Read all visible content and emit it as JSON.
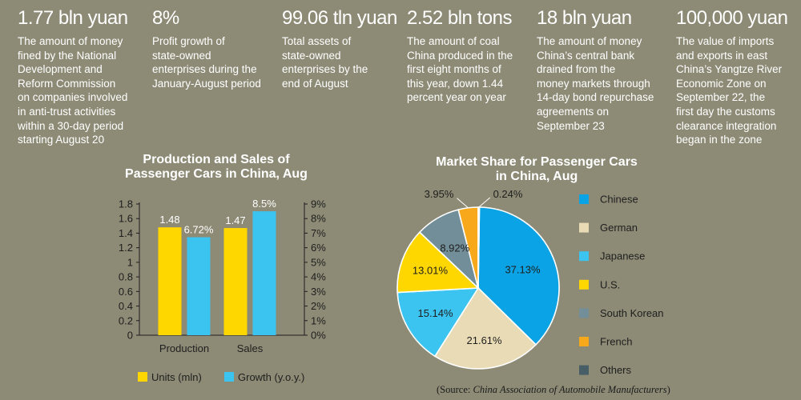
{
  "stats": [
    {
      "value": "1.77 bln yuan",
      "desc": [
        "The amount of money",
        "fined by the National",
        "Development and",
        "Reform Commission",
        "on companies involved",
        "in anti-trust activities",
        "within a 30-day period",
        "starting August 20"
      ]
    },
    {
      "value": "8%",
      "desc": [
        "Profit growth of",
        "state-owned",
        "enterprises during the",
        "January-August period"
      ]
    },
    {
      "value": "99.06 tln yuan",
      "desc": [
        "Total assets of",
        "state-owned",
        "enterprises by the",
        "end of August"
      ]
    },
    {
      "value": "2.52 bln tons",
      "desc": [
        "The amount of coal",
        "China produced in the",
        "first eight months of",
        "this year, down 1.44",
        "percent year on year"
      ]
    },
    {
      "value": "18 bln yuan",
      "desc": [
        "The amount of money",
        "China’s central bank",
        "drained from the",
        "money markets through",
        "14-day bond repurchase",
        "agreements on",
        "September 23"
      ]
    },
    {
      "value": "100,000 yuan",
      "desc": [
        "The value of imports",
        "and exports in east",
        "China’s Yangtze River",
        "Economic Zone on",
        "September 22, the",
        "first day the customs",
        "clearance integration",
        "began in the zone"
      ]
    }
  ],
  "chart_data": [
    {
      "type": "bar",
      "title_lines": [
        "Production and Sales of",
        "Passenger Cars in China, Aug"
      ],
      "categories": [
        "Production",
        "Sales"
      ],
      "series": [
        {
          "name": "Units (mln)",
          "values": [
            1.48,
            1.47
          ],
          "labels": [
            "1.48",
            "1.47"
          ],
          "color": "#ffd700",
          "axis": "left"
        },
        {
          "name": "Growth (y.o.y.)",
          "values": [
            6.72,
            8.5
          ],
          "labels": [
            "6.72%",
            "8.5%"
          ],
          "color": "#3cc4f1",
          "axis": "right"
        }
      ],
      "ylim_left": [
        0,
        1.8
      ],
      "ylim_right": [
        0,
        9
      ],
      "left_ticks": [
        "0",
        "0.2",
        "0.4",
        "0.6",
        "0.8",
        "1",
        "1.2",
        "1.4",
        "1.6",
        "1.8"
      ],
      "right_ticks": [
        "0%",
        "1%",
        "2%",
        "3%",
        "4%",
        "5%",
        "6%",
        "7%",
        "8%",
        "9%"
      ],
      "grid": false,
      "legend_position": "bottom"
    },
    {
      "type": "pie",
      "title_lines": [
        "Market Share for Passenger Cars",
        "in China, Aug"
      ],
      "slices": [
        {
          "name": "Chinese",
          "value": 37.13,
          "label": "37.13%",
          "color": "#0aa4e6"
        },
        {
          "name": "German",
          "value": 21.61,
          "label": "21.61%",
          "color": "#e8dbb5"
        },
        {
          "name": "Japanese",
          "value": 15.14,
          "label": "15.14%",
          "color": "#3cc4f1"
        },
        {
          "name": "U.S.",
          "value": 13.01,
          "label": "13.01%",
          "color": "#ffd700"
        },
        {
          "name": "South Korean",
          "value": 8.92,
          "label": "8.92%",
          "color": "#728e98"
        },
        {
          "name": "French",
          "value": 3.95,
          "label": "3.95%",
          "color": "#f7a81b"
        },
        {
          "name": "Others",
          "value": 0.24,
          "label": "0.24%",
          "color": "#475e66"
        }
      ],
      "legend_position": "right"
    }
  ],
  "source": {
    "prefix": "(Source: ",
    "name": "China Association of Automobile Manufacturers",
    "suffix": ")"
  }
}
